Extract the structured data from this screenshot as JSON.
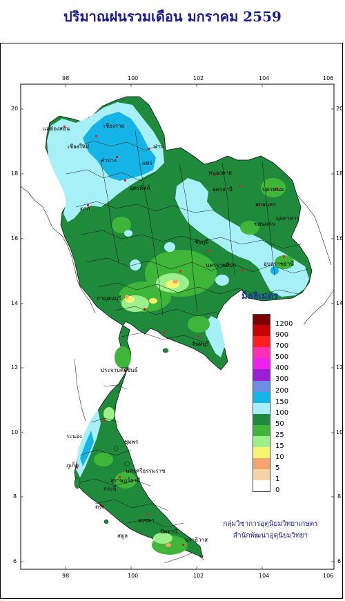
{
  "title": "ปริมาณฝนรวมเดือน  มกราคม 2559",
  "longitude_ticks": [
    "98",
    "100",
    "102",
    "104",
    "106"
  ],
  "latitude_ticks": [
    "20",
    "18",
    "16",
    "14",
    "12",
    "10",
    "8",
    "6"
  ],
  "legend": {
    "title": "มิลลิเมตร",
    "items": [
      {
        "label": "1200",
        "color": "#7a0000"
      },
      {
        "label": "900",
        "color": "#c80000"
      },
      {
        "label": "700",
        "color": "#ff1e1e"
      },
      {
        "label": "500",
        "color": "#ff2fb4"
      },
      {
        "label": "400",
        "color": "#ee22ee"
      },
      {
        "label": "300",
        "color": "#9a1fd6"
      },
      {
        "label": "200",
        "color": "#6c8fe6"
      },
      {
        "label": "150",
        "color": "#14b4e6"
      },
      {
        "label": "100",
        "color": "#a8f0f8"
      },
      {
        "label": "50",
        "color": "#1f8a3c"
      },
      {
        "label": "25",
        "color": "#3fb63a"
      },
      {
        "label": "15",
        "color": "#9cf08c"
      },
      {
        "label": "10",
        "color": "#f5f56e"
      },
      {
        "label": "5",
        "color": "#f5a46e"
      },
      {
        "label": "1",
        "color": "#f5d2a8"
      },
      {
        "label": "0",
        "color": "#ffffff"
      }
    ]
  },
  "credits": [
    "กลุ่มวิชาการอุตุนิยมวิทยาเกษตร",
    "สำนักพัฒนาอุตุนิยมวิทยา"
  ],
  "place_labels": [
    "เชียงราย",
    "แม่ฮ่องสอน",
    "เชียงใหม่",
    "ลำปาง",
    "แพร่",
    "น่าน",
    "อุตรดิตถ์",
    "ตาก",
    "หนองคาย",
    "อุดรธานี",
    "นครพนม",
    "สกลนคร",
    "ขอนแก่น",
    "มุกดาหาร",
    "นครราชสีมา",
    "อุบลราชธานี",
    "ชัยภูมิ",
    "ประจวบคีรีขันธ์",
    "ระนอง",
    "ชุมพร",
    "สุราษฎร์ธานี",
    "ภูเก็ต",
    "นครศรีธรรมราช",
    "กระบี่",
    "ตรัง",
    "สงขลา",
    "ปัตตานี",
    "นราธิวาส",
    "สตูล",
    "กาญจนบุรี",
    "จันทบุรี"
  ]
}
